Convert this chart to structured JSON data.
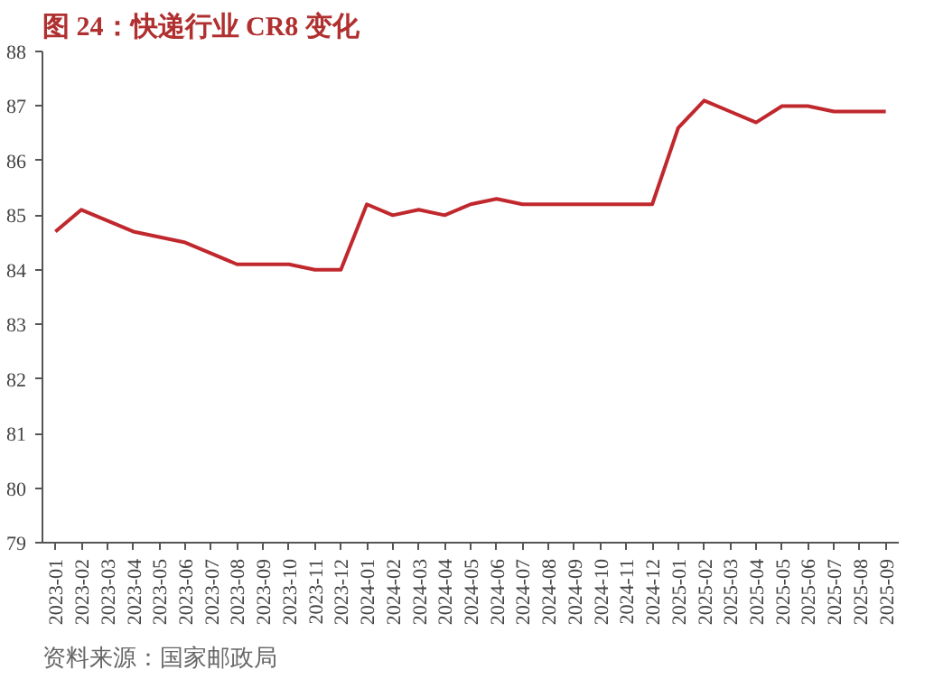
{
  "chart_data": {
    "type": "line",
    "title": "图 24：快递行业 CR8 变化",
    "categories": [
      "2023-01",
      "2023-02",
      "2023-03",
      "2023-04",
      "2023-05",
      "2023-06",
      "2023-07",
      "2023-08",
      "2023-09",
      "2023-10",
      "2023-11",
      "2023-12",
      "2024-01",
      "2024-02",
      "2024-03",
      "2024-04",
      "2024-05",
      "2024-06",
      "2024-07",
      "2024-08",
      "2024-09",
      "2024-10",
      "2024-11",
      "2024-12",
      "2025-01",
      "2025-02",
      "2025-03",
      "2025-04",
      "2025-05",
      "2025-06",
      "2025-07",
      "2025-08",
      "2025-09"
    ],
    "series": [
      {
        "color": "#c0282d",
        "values": [
          84.7,
          85.1,
          84.9,
          84.7,
          84.6,
          84.5,
          84.3,
          84.1,
          84.1,
          84.1,
          84.0,
          84.0,
          85.2,
          85.0,
          85.1,
          85.0,
          85.2,
          85.3,
          85.2,
          85.2,
          85.2,
          85.2,
          85.2,
          85.2,
          86.6,
          87.1,
          86.9,
          86.7,
          87.0,
          87.0,
          86.9,
          86.9,
          86.9
        ]
      }
    ],
    "ylim": [
      79,
      88
    ],
    "yticks": [
      79,
      80,
      81,
      82,
      83,
      84,
      85,
      86,
      87,
      88
    ],
    "grid": false,
    "annotations": [
      "资料来源：国家邮政局"
    ]
  }
}
